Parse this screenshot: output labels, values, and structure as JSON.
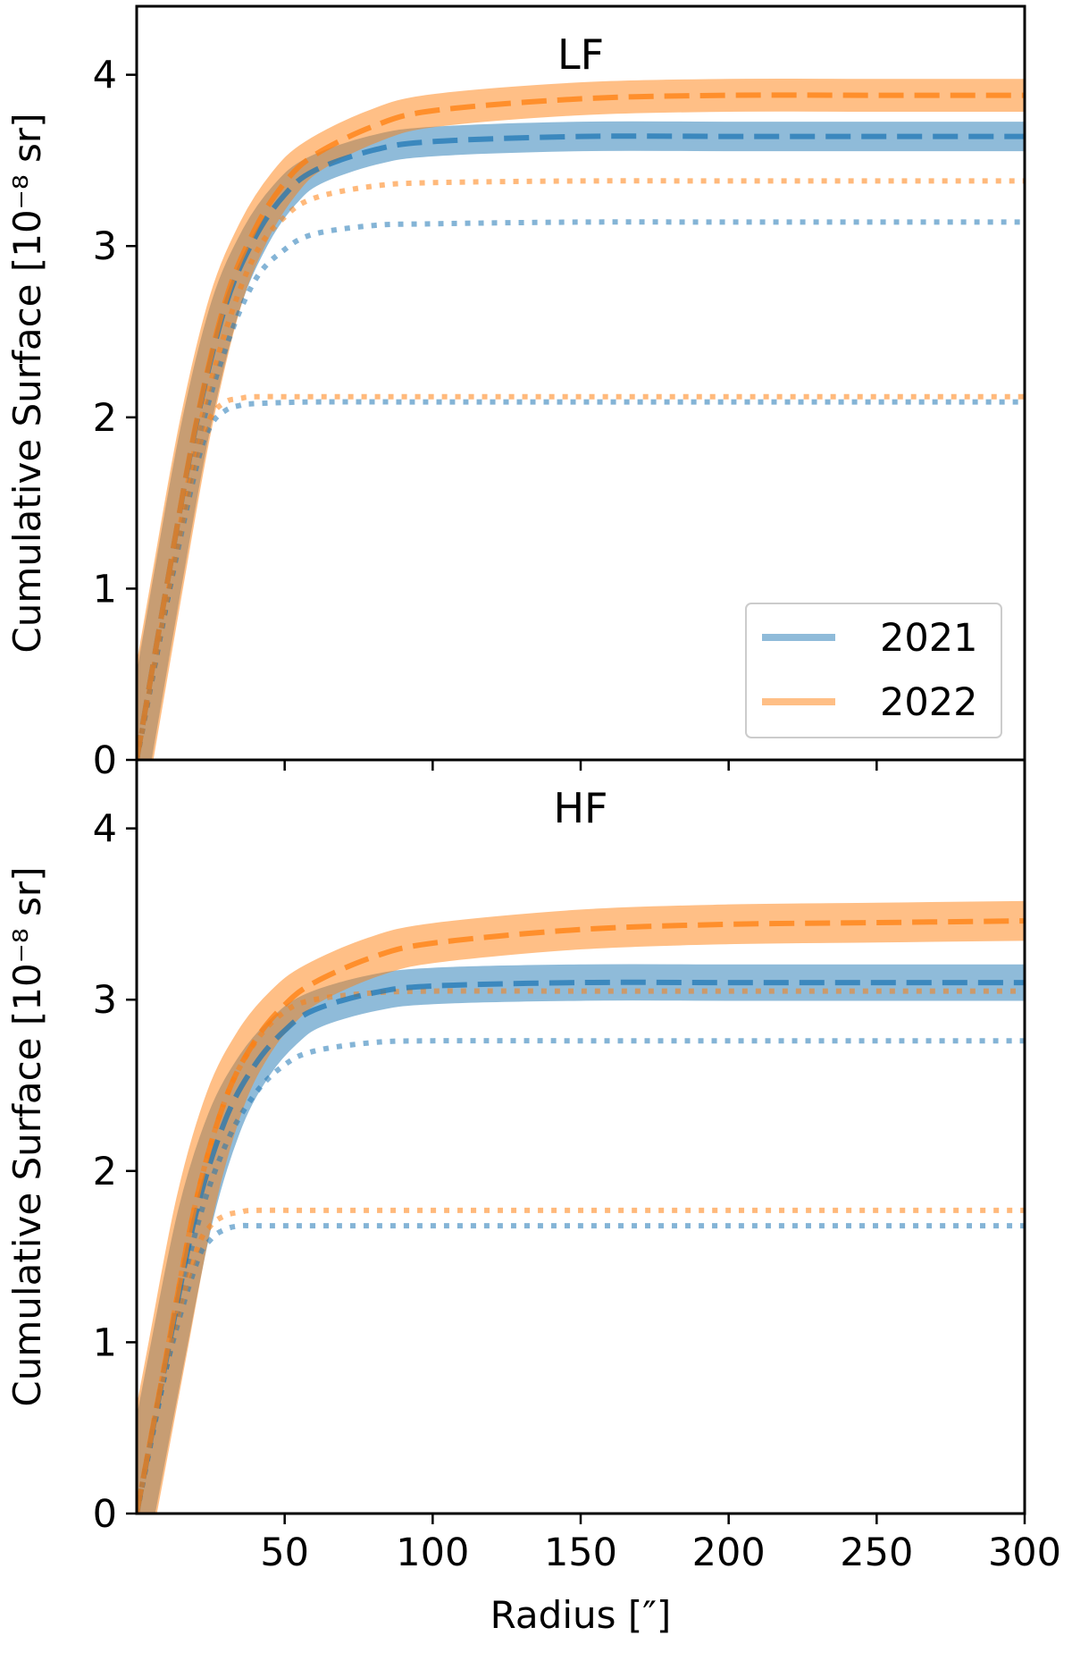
{
  "chart_data": [
    {
      "type": "line",
      "title": "LF",
      "xlabel": "",
      "ylabel": "Cumulative Surface [10⁻⁸ sr]",
      "xlim": [
        0,
        300
      ],
      "ylim": [
        0,
        4.4
      ],
      "xticks": [
        "50",
        "100",
        "150",
        "200",
        "250",
        "300"
      ],
      "yticks": [
        "0",
        "1",
        "2",
        "3",
        "4"
      ],
      "grid": false,
      "legend": {
        "position": "lower right",
        "entries": [
          "2021",
          "2022"
        ]
      },
      "series": [
        {
          "name": "2021",
          "color": "#1f77b4",
          "style": "dashed-with-band",
          "band": 0.06,
          "x": [
            0,
            10,
            20,
            30,
            40,
            50,
            60,
            80,
            100,
            150,
            200,
            250,
            300
          ],
          "y": [
            0,
            1.0,
            1.95,
            2.65,
            3.05,
            3.3,
            3.44,
            3.56,
            3.61,
            3.64,
            3.64,
            3.64,
            3.64
          ]
        },
        {
          "name": "2022",
          "color": "#ff7f0e",
          "style": "dashed-with-band",
          "band": 0.07,
          "x": [
            0,
            10,
            20,
            30,
            40,
            50,
            60,
            80,
            100,
            150,
            200,
            250,
            300
          ],
          "y": [
            0,
            1.0,
            1.96,
            2.68,
            3.1,
            3.37,
            3.53,
            3.7,
            3.79,
            3.86,
            3.88,
            3.88,
            3.88
          ]
        },
        {
          "name": "",
          "color": "#1f77b4",
          "style": "dotted",
          "x": [
            0,
            10,
            20,
            30,
            40,
            50,
            60,
            80,
            100,
            150,
            200,
            250,
            300
          ],
          "y": [
            0,
            0.9,
            1.8,
            2.4,
            2.8,
            2.98,
            3.07,
            3.12,
            3.13,
            3.14,
            3.14,
            3.14,
            3.14
          ]
        },
        {
          "name": "",
          "color": "#ff7f0e",
          "style": "dotted",
          "x": [
            0,
            10,
            20,
            30,
            40,
            50,
            60,
            80,
            100,
            150,
            200,
            250,
            300
          ],
          "y": [
            0,
            0.92,
            1.85,
            2.5,
            2.95,
            3.17,
            3.28,
            3.35,
            3.37,
            3.38,
            3.38,
            3.38,
            3.38
          ]
        },
        {
          "name": "",
          "color": "#1f77b4",
          "style": "dotted",
          "x": [
            0,
            10,
            20,
            25,
            30,
            35,
            40,
            60,
            100,
            200,
            300
          ],
          "y": [
            0,
            0.9,
            1.7,
            1.95,
            2.04,
            2.07,
            2.08,
            2.09,
            2.09,
            2.09,
            2.09
          ]
        },
        {
          "name": "",
          "color": "#ff7f0e",
          "style": "dotted",
          "x": [
            0,
            10,
            20,
            25,
            30,
            35,
            40,
            60,
            100,
            200,
            300
          ],
          "y": [
            0,
            0.92,
            1.75,
            2.0,
            2.09,
            2.11,
            2.12,
            2.12,
            2.12,
            2.12,
            2.12
          ]
        }
      ]
    },
    {
      "type": "line",
      "title": "HF",
      "xlabel": "Radius [″]",
      "ylabel": "Cumulative Surface [10⁻⁸ sr]",
      "xlim": [
        0,
        300
      ],
      "ylim": [
        0,
        4.4
      ],
      "xticks": [
        "50",
        "100",
        "150",
        "200",
        "250",
        "300"
      ],
      "yticks": [
        "0",
        "1",
        "2",
        "3",
        "4"
      ],
      "grid": false,
      "series": [
        {
          "name": "2021",
          "color": "#1f77b4",
          "style": "dashed-with-band",
          "band": 0.08,
          "x": [
            0,
            10,
            20,
            30,
            40,
            50,
            60,
            80,
            100,
            150,
            200,
            250,
            300
          ],
          "y": [
            0,
            0.9,
            1.75,
            2.3,
            2.62,
            2.82,
            2.94,
            3.04,
            3.08,
            3.1,
            3.1,
            3.1,
            3.1
          ]
        },
        {
          "name": "2022",
          "color": "#ff7f0e",
          "style": "dashed-with-band",
          "band": 0.09,
          "x": [
            0,
            10,
            20,
            30,
            40,
            50,
            60,
            80,
            100,
            150,
            200,
            250,
            300
          ],
          "y": [
            0,
            0.92,
            1.82,
            2.42,
            2.76,
            2.97,
            3.1,
            3.25,
            3.33,
            3.41,
            3.44,
            3.45,
            3.46
          ]
        },
        {
          "name": "",
          "color": "#1f77b4",
          "style": "dotted",
          "x": [
            0,
            10,
            20,
            30,
            40,
            50,
            60,
            80,
            100,
            150,
            200,
            250,
            300
          ],
          "y": [
            0,
            0.85,
            1.65,
            2.15,
            2.45,
            2.62,
            2.7,
            2.75,
            2.76,
            2.76,
            2.76,
            2.76,
            2.76
          ]
        },
        {
          "name": "",
          "color": "#ff7f0e",
          "style": "dotted",
          "x": [
            0,
            10,
            20,
            30,
            40,
            50,
            60,
            80,
            100,
            150,
            200,
            250,
            300
          ],
          "y": [
            0,
            0.92,
            1.82,
            2.42,
            2.75,
            2.93,
            3.0,
            3.04,
            3.05,
            3.05,
            3.05,
            3.05,
            3.05
          ]
        },
        {
          "name": "",
          "color": "#1f77b4",
          "style": "dotted",
          "x": [
            0,
            10,
            20,
            25,
            30,
            35,
            40,
            60,
            100,
            200,
            300
          ],
          "y": [
            0,
            0.85,
            1.45,
            1.6,
            1.66,
            1.68,
            1.68,
            1.68,
            1.68,
            1.68,
            1.68
          ]
        },
        {
          "name": "",
          "color": "#ff7f0e",
          "style": "dotted",
          "x": [
            0,
            10,
            20,
            25,
            30,
            35,
            40,
            60,
            100,
            200,
            300
          ],
          "y": [
            0,
            0.88,
            1.52,
            1.68,
            1.74,
            1.76,
            1.77,
            1.77,
            1.77,
            1.77,
            1.77
          ]
        }
      ]
    }
  ]
}
